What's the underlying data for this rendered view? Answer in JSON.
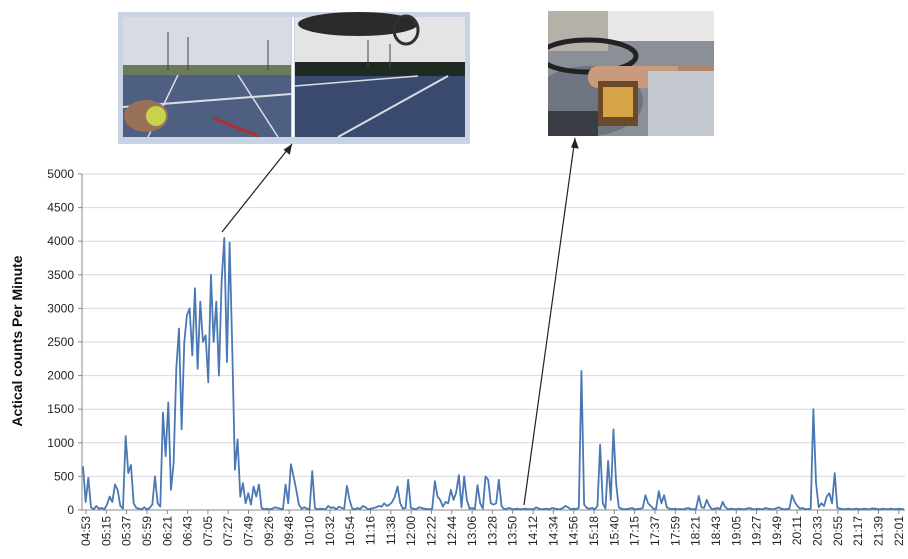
{
  "chart_data": {
    "type": "line",
    "title": "",
    "xlabel": "",
    "ylabel": "Actical counts Per Minute",
    "ylim": [
      0,
      5000
    ],
    "yticks": [
      0,
      500,
      1000,
      1500,
      2000,
      2500,
      3000,
      3500,
      4000,
      4500,
      5000
    ],
    "xticks": [
      "04:53",
      "05:15",
      "05:37",
      "05:59",
      "06:21",
      "06:43",
      "07:05",
      "07:27",
      "07:49",
      "09:26",
      "09:48",
      "10:10",
      "10:32",
      "10:54",
      "11:16",
      "11:38",
      "12:00",
      "12:22",
      "12:44",
      "13:06",
      "13:28",
      "13:50",
      "14:12",
      "14:34",
      "14:56",
      "15:18",
      "15:40",
      "17:15",
      "17:37",
      "17:59",
      "18:21",
      "18:43",
      "19:05",
      "19:27",
      "19:49",
      "20:11",
      "20:33",
      "20:55",
      "21:17",
      "21:39",
      "22:01"
    ],
    "grid": true,
    "legend": "none",
    "series": [
      {
        "color": "#4a78b5",
        "values": [
          650,
          120,
          480,
          40,
          10,
          60,
          20,
          30,
          10,
          80,
          200,
          120,
          380,
          300,
          60,
          20,
          1100,
          550,
          670,
          100,
          30,
          20,
          10,
          40,
          10,
          30,
          80,
          500,
          100,
          50,
          1450,
          800,
          1600,
          300,
          700,
          2100,
          2700,
          1200,
          2500,
          2900,
          3000,
          2300,
          3300,
          2100,
          3100,
          2500,
          2600,
          1900,
          3500,
          2500,
          3100,
          2000,
          3400,
          4050,
          2200,
          3980,
          2400,
          600,
          1050,
          200,
          400,
          100,
          250,
          80,
          350,
          200,
          380,
          30,
          10,
          20,
          10,
          20,
          40,
          30,
          20,
          10,
          380,
          100,
          680,
          500,
          300,
          80,
          20,
          40,
          20,
          10,
          580,
          30,
          10,
          20,
          15,
          10,
          60,
          30,
          40,
          10,
          50,
          30,
          20,
          360,
          150,
          20,
          10,
          30,
          15,
          60,
          40,
          10,
          20,
          30,
          40,
          60,
          50,
          100,
          60,
          80,
          120,
          200,
          350,
          100,
          20,
          30,
          450,
          30,
          20,
          10,
          40,
          30,
          20,
          15,
          10,
          20,
          430,
          200,
          150,
          50,
          120,
          100,
          300,
          150,
          260,
          520,
          40,
          500,
          150,
          20,
          30,
          10,
          370,
          100,
          20,
          500,
          450,
          100,
          80,
          100,
          450,
          60,
          10,
          20,
          30,
          10,
          15,
          20,
          10,
          15,
          20,
          10,
          15,
          10,
          40,
          20,
          10,
          15,
          20,
          10,
          30,
          20,
          15,
          10,
          30,
          60,
          40,
          10,
          20,
          15,
          30,
          2070,
          80,
          30,
          20,
          30,
          10,
          60,
          970,
          100,
          20,
          730,
          150,
          1200,
          400,
          40,
          20,
          10,
          15,
          20,
          30,
          10,
          15,
          20,
          30,
          220,
          100,
          60,
          20,
          15,
          280,
          100,
          220,
          40,
          20,
          15,
          20,
          10,
          15,
          10,
          20,
          30,
          15,
          10,
          20,
          210,
          40,
          30,
          150,
          60,
          10,
          20,
          30,
          15,
          120,
          40,
          10,
          20,
          15,
          10,
          20,
          15,
          10,
          20,
          30,
          15,
          10,
          20,
          15,
          10,
          30,
          20,
          15,
          10,
          25,
          40,
          20,
          10,
          15,
          20,
          220,
          120,
          60,
          20,
          30,
          10,
          15,
          20,
          1500,
          400,
          40,
          100,
          60,
          200,
          250,
          100,
          550,
          30,
          20,
          15,
          10,
          20,
          15,
          10,
          20,
          15,
          10,
          20,
          15,
          10,
          25,
          20,
          15,
          10,
          20,
          15,
          10,
          20,
          15,
          10,
          20,
          15,
          10
        ]
      }
    ]
  }
}
